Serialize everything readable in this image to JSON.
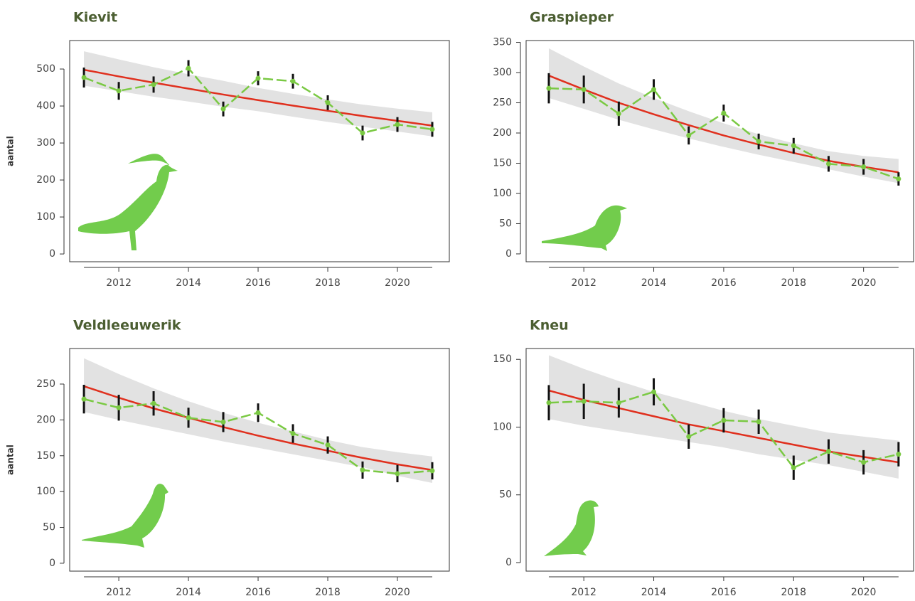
{
  "chart_data": [
    {
      "type": "line",
      "title": "Kievit",
      "y_label": "aantal",
      "x": [
        2011,
        2012,
        2013,
        2014,
        2015,
        2016,
        2017,
        2018,
        2019,
        2020,
        2021
      ],
      "series": [
        {
          "name": "Kievit",
          "color": "#7ac943",
          "values": [
            477,
            441,
            458,
            502,
            392,
            475,
            467,
            409,
            327,
            350,
            337
          ],
          "errors": [
            27,
            24,
            22,
            22,
            20,
            19,
            20,
            20,
            20,
            20,
            20
          ]
        }
      ],
      "trend": {
        "color": "#e0301e",
        "values": [
          498,
          480,
          463,
          447,
          431,
          416,
          401,
          387,
          373,
          360,
          347
        ]
      },
      "band": {
        "color": "#e2e2e2",
        "upper": [
          548,
          526,
          505,
          486,
          468,
          449,
          433,
          418,
          404,
          393,
          383
        ],
        "lower": [
          455,
          440,
          425,
          412,
          398,
          386,
          371,
          357,
          344,
          331,
          318
        ]
      },
      "xlim": [
        2010.59,
        2021.49
      ],
      "ylim": [
        -21,
        577
      ],
      "xticks": [
        2012,
        2014,
        2016,
        2018,
        2020
      ],
      "yticks": [
        0,
        100,
        200,
        300,
        400,
        500
      ]
    },
    {
      "type": "line",
      "title": "Graspieper",
      "x": [
        2011,
        2012,
        2013,
        2014,
        2015,
        2016,
        2017,
        2018,
        2019,
        2020,
        2021
      ],
      "series": [
        {
          "name": "Graspieper",
          "color": "#7ac943",
          "values": [
            274,
            272,
            232,
            272,
            196,
            233,
            186,
            179,
            149,
            144,
            124
          ],
          "errors": [
            25,
            23,
            20,
            17,
            15,
            14,
            13,
            13,
            13,
            13,
            11
          ]
        }
      ],
      "trend": {
        "color": "#e0301e",
        "values": [
          295,
          272,
          250,
          231,
          213,
          196,
          181,
          167,
          154,
          144,
          135
        ]
      },
      "band": {
        "color": "#e2e2e2",
        "upper": [
          340,
          310,
          282,
          258,
          236,
          216,
          198,
          183,
          170,
          162,
          157
        ],
        "lower": [
          258,
          240,
          222,
          206,
          191,
          177,
          164,
          152,
          140,
          128,
          117
        ]
      },
      "xlim": [
        2010.35,
        2021.43
      ],
      "ylim": [
        -13,
        353
      ],
      "xticks": [
        2012,
        2014,
        2016,
        2018,
        2020
      ],
      "yticks": [
        0,
        50,
        100,
        150,
        200,
        250,
        300,
        350
      ]
    },
    {
      "type": "line",
      "title": "Veldleeuwerik",
      "y_label": "aantal",
      "x": [
        2011,
        2012,
        2013,
        2014,
        2015,
        2016,
        2017,
        2018,
        2019,
        2020,
        2021
      ],
      "series": [
        {
          "name": "Veldleeuwerik",
          "color": "#7ac943",
          "values": [
            229,
            217,
            223,
            203,
            197,
            210,
            181,
            165,
            130,
            125,
            129
          ],
          "errors": [
            20,
            18,
            17,
            14,
            14,
            13,
            13,
            12,
            12,
            12,
            12
          ]
        }
      ],
      "trend": {
        "color": "#e0301e",
        "values": [
          247,
          231,
          216,
          203,
          190,
          178,
          167,
          157,
          147,
          138,
          130
        ]
      },
      "band": {
        "color": "#e2e2e2",
        "upper": [
          286,
          264,
          244,
          226,
          210,
          196,
          184,
          172,
          162,
          155,
          149
        ],
        "lower": [
          211,
          200,
          190,
          180,
          170,
          161,
          152,
          143,
          134,
          122,
          112
        ]
      },
      "xlim": [
        2010.59,
        2021.49
      ],
      "ylim": [
        -11,
        299.6
      ],
      "xticks": [
        2012,
        2014,
        2016,
        2018,
        2020
      ],
      "yticks": [
        0,
        50,
        100,
        150,
        200,
        250
      ]
    },
    {
      "type": "line",
      "title": "Kneu",
      "x": [
        2011,
        2012,
        2013,
        2014,
        2015,
        2016,
        2017,
        2018,
        2019,
        2020,
        2021
      ],
      "series": [
        {
          "name": "Kneu",
          "color": "#7ac943",
          "values": [
            118,
            119,
            118,
            126,
            93,
            105,
            104,
            70,
            82,
            74,
            80
          ],
          "errors": [
            13,
            13,
            11,
            10,
            9,
            9,
            9,
            9,
            9,
            9,
            9
          ]
        }
      ],
      "trend": {
        "color": "#e0301e",
        "values": [
          127,
          120,
          114,
          108,
          102,
          97,
          92,
          87,
          82,
          78,
          74
        ]
      },
      "band": {
        "color": "#e2e2e2",
        "upper": [
          153,
          143,
          134,
          126,
          119,
          112,
          106,
          101,
          96,
          93,
          90
        ],
        "lower": [
          106,
          101,
          97,
          93,
          89,
          85,
          80,
          76,
          72,
          67,
          62
        ]
      },
      "xlim": [
        2010.35,
        2021.43
      ],
      "ylim": [
        -6.3,
        158
      ],
      "xticks": [
        2012,
        2014,
        2016,
        2018,
        2020
      ],
      "yticks": [
        0,
        50,
        100,
        150
      ]
    }
  ]
}
